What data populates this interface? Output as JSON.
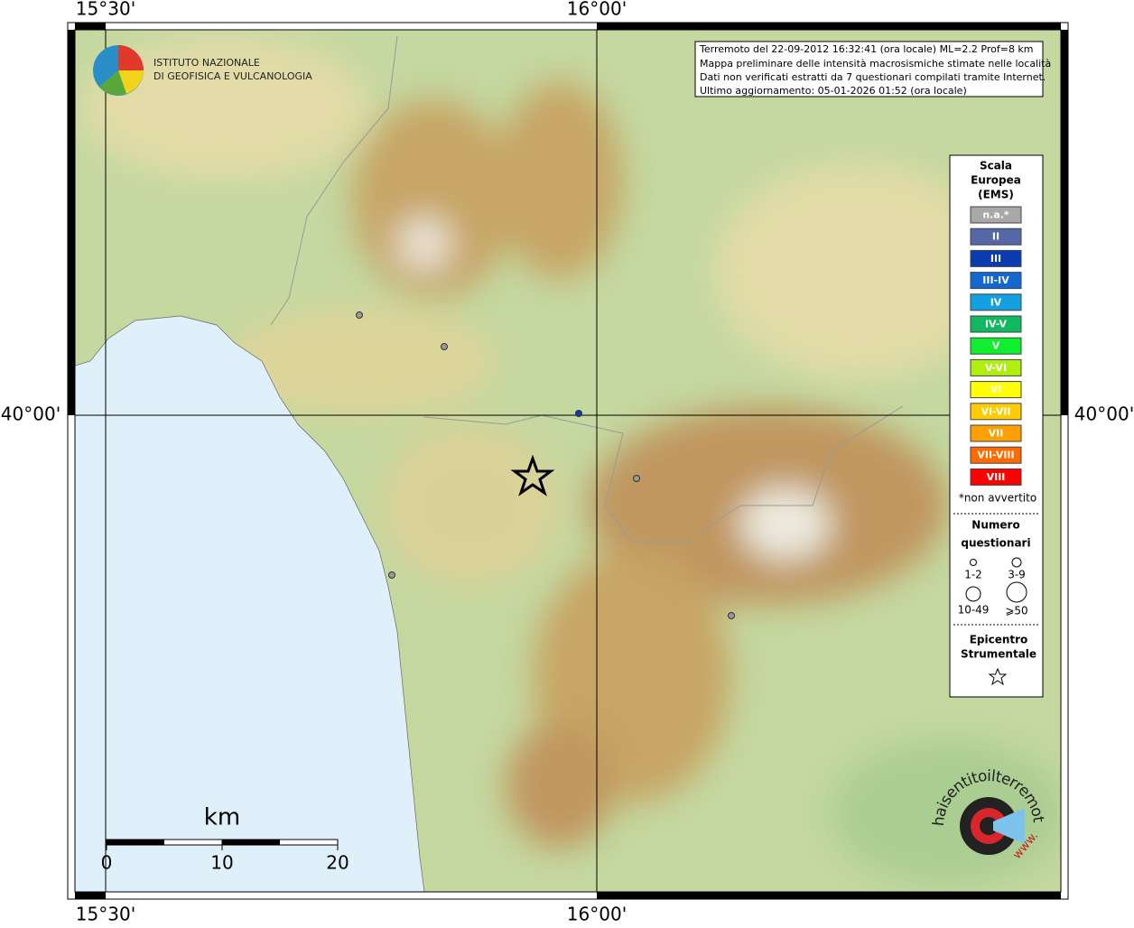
{
  "header": {
    "lines": [
      "Terremoto del 22-09-2012 16:32:41 (ora locale) ML=2.2 Prof=8 km",
      "Mappa preliminare delle intensità macrosismiche stimate nelle località",
      "Dati non verificati estratti da 7 questionari compilati tramite Internet.",
      "Ultimo aggiornamento: 05-01-2026 01:52 (ora locale)"
    ]
  },
  "axes": {
    "longitudes": [
      "15°30'",
      "16°00'"
    ],
    "latitudes": [
      "40°00'"
    ]
  },
  "logo": {
    "line1": "ISTITUTO NAZIONALE",
    "line2": "DI GEOFISICA E VULCANOLOGIA",
    "site": "haisentitoilterremoto.it",
    "www": "www."
  },
  "legend": {
    "title": [
      "Scala",
      "Europea",
      "(EMS)"
    ],
    "items": [
      {
        "label": "n.a.*",
        "color": "#a8a8a8"
      },
      {
        "label": "II",
        "color": "#5468a8"
      },
      {
        "label": "III",
        "color": "#0a3cb0"
      },
      {
        "label": "III-IV",
        "color": "#1068d0"
      },
      {
        "label": "IV",
        "color": "#12a0e0"
      },
      {
        "label": "IV-V",
        "color": "#10b860"
      },
      {
        "label": "V",
        "color": "#10ee30"
      },
      {
        "label": "V-VI",
        "color": "#b0ee10"
      },
      {
        "label": "VI",
        "color": "#ffff00"
      },
      {
        "label": "VI-VII",
        "color": "#ffcc00"
      },
      {
        "label": "VII",
        "color": "#ffa000"
      },
      {
        "label": "VII-VIII",
        "color": "#ff6a00"
      },
      {
        "label": "VIII",
        "color": "#ff0000"
      }
    ],
    "note": "*non avvertito",
    "count_title": [
      "Numero",
      "questionari"
    ],
    "count_classes": [
      "1-2",
      "3-9",
      "10-49",
      "⩾50"
    ],
    "epicenter_title": [
      "Epicentro",
      "Strumentale"
    ]
  },
  "scale_bar": {
    "unit": "km",
    "labels": [
      "0",
      "10",
      "20"
    ]
  }
}
